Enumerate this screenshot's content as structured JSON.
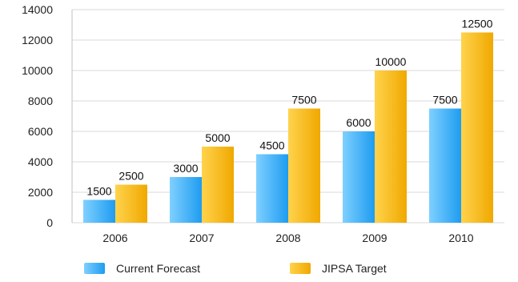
{
  "chart_data": {
    "type": "bar",
    "title": "",
    "xlabel": "",
    "ylabel": "",
    "categories": [
      "2006",
      "2007",
      "2008",
      "2009",
      "2010"
    ],
    "ylim": [
      0,
      14000
    ],
    "yticks": [
      0,
      2000,
      4000,
      6000,
      8000,
      10000,
      12000,
      14000
    ],
    "grid": true,
    "legend_position": "bottom",
    "series": [
      {
        "name": "Current Forecast",
        "values": [
          1500,
          3000,
          4500,
          6000,
          7500
        ],
        "color": "#1e9cf0",
        "color_light": "#7fd0ff"
      },
      {
        "name": "JIPSA Target",
        "values": [
          2500,
          5000,
          7500,
          10000,
          12500
        ],
        "color": "#f0a800",
        "color_light": "#ffd34d"
      }
    ]
  }
}
